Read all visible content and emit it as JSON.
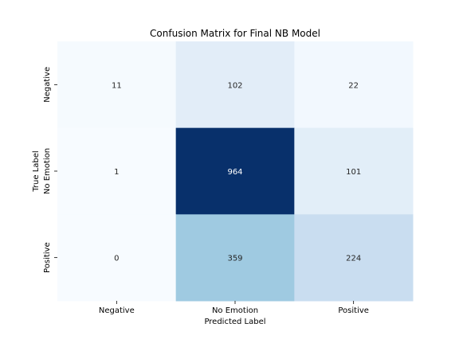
{
  "chart_data": {
    "type": "heatmap",
    "title": "Confusion Matrix for Final NB Model",
    "xlabel": "Predicted Label",
    "ylabel": "True Label",
    "x_categories": [
      "Negative",
      "No Emotion",
      "Positive"
    ],
    "y_categories": [
      "Negative",
      "No Emotion",
      "Positive"
    ],
    "values": [
      [
        11,
        102,
        22
      ],
      [
        1,
        964,
        101
      ],
      [
        0,
        359,
        224
      ]
    ],
    "colormap": "Blues",
    "colorbar": false,
    "annotated": true,
    "grid": false
  }
}
